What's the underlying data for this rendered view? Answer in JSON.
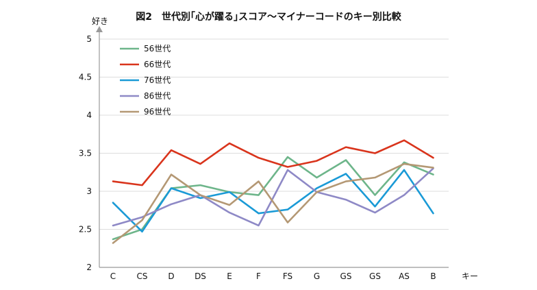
{
  "chart_data": {
    "type": "line",
    "title": "図2　世代別｢心が躍る｣スコア〜マイナーコードのキー別比較",
    "xlabel": "キー",
    "ylabel": "好き",
    "ylim": [
      2,
      5
    ],
    "yticks": [
      "2",
      "2.5",
      "3",
      "3.5",
      "4",
      "4.5",
      "5"
    ],
    "categories": [
      "C",
      "CS",
      "D",
      "DS",
      "E",
      "F",
      "FS",
      "G",
      "GS",
      "GS",
      "AS",
      "B"
    ],
    "grid": true,
    "legend_position": "top-left",
    "series": [
      {
        "name": "56世代",
        "color": "#6db58a",
        "values": [
          2.37,
          2.5,
          3.04,
          3.08,
          2.99,
          2.95,
          3.45,
          3.18,
          3.41,
          2.95,
          3.38,
          3.22
        ]
      },
      {
        "name": "66世代",
        "color": "#d9341c",
        "values": [
          3.13,
          3.08,
          3.54,
          3.36,
          3.63,
          3.44,
          3.32,
          3.4,
          3.58,
          3.5,
          3.67,
          3.44
        ]
      },
      {
        "name": "76世代",
        "color": "#1a9ad6",
        "values": [
          2.85,
          2.47,
          3.04,
          2.91,
          2.99,
          2.71,
          2.76,
          3.04,
          3.23,
          2.8,
          3.28,
          2.71
        ]
      },
      {
        "name": "86世代",
        "color": "#8e89c6",
        "values": [
          2.55,
          2.66,
          2.83,
          2.95,
          2.72,
          2.55,
          3.28,
          2.99,
          2.89,
          2.72,
          2.95,
          3.3
        ]
      },
      {
        "name": "96世代",
        "color": "#b49874",
        "values": [
          2.32,
          2.62,
          3.22,
          2.95,
          2.82,
          3.13,
          2.59,
          2.99,
          3.13,
          3.18,
          3.36,
          3.31
        ]
      }
    ]
  }
}
